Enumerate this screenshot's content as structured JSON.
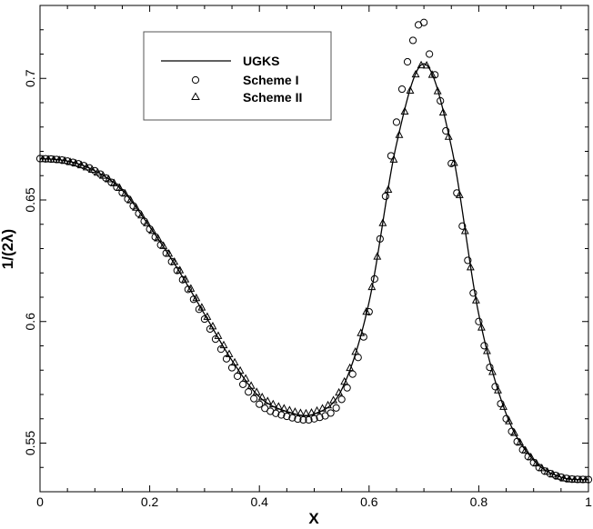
{
  "chart_data": {
    "type": "line",
    "xlabel": "X",
    "ylabel": "1/(2λ)",
    "xlim": [
      0,
      1
    ],
    "ylim": [
      0.53,
      0.73
    ],
    "x_ticks": [
      0,
      0.2,
      0.4,
      0.6,
      0.8,
      1
    ],
    "x_tick_labels": [
      "0",
      "0.2",
      "0.4",
      "0.6",
      "0.8",
      "1"
    ],
    "y_ticks": [
      0.55,
      0.6,
      0.65,
      0.7
    ],
    "y_tick_labels": [
      "0.55",
      "0.6",
      "0.65",
      "0.7"
    ],
    "grid": false,
    "legend_position": "top-left",
    "series": [
      {
        "name": "UGKS",
        "style": "line",
        "x": [
          0,
          0.05,
          0.1,
          0.15,
          0.2,
          0.25,
          0.3,
          0.35,
          0.4,
          0.45,
          0.5,
          0.55,
          0.6,
          0.65,
          0.7,
          0.75,
          0.8,
          0.85,
          0.9,
          0.95,
          1
        ],
        "y": [
          0.667,
          0.666,
          0.662,
          0.654,
          0.639,
          0.622,
          0.603,
          0.584,
          0.569,
          0.563,
          0.562,
          0.572,
          0.608,
          0.673,
          0.706,
          0.672,
          0.603,
          0.562,
          0.543,
          0.536,
          0.535
        ]
      },
      {
        "name": "Scheme I",
        "style": "circle",
        "x": [
          0,
          0.05,
          0.1,
          0.15,
          0.2,
          0.25,
          0.3,
          0.35,
          0.4,
          0.45,
          0.5,
          0.55,
          0.6,
          0.65,
          0.69,
          0.7,
          0.71,
          0.75,
          0.8,
          0.85,
          0.9,
          0.95,
          1
        ],
        "y": [
          0.667,
          0.666,
          0.662,
          0.653,
          0.638,
          0.621,
          0.601,
          0.581,
          0.566,
          0.561,
          0.56,
          0.568,
          0.604,
          0.682,
          0.722,
          0.723,
          0.71,
          0.665,
          0.6,
          0.56,
          0.542,
          0.536,
          0.535
        ]
      },
      {
        "name": "Scheme II",
        "style": "triangle",
        "x": [
          0,
          0.05,
          0.1,
          0.15,
          0.2,
          0.25,
          0.3,
          0.35,
          0.4,
          0.45,
          0.5,
          0.55,
          0.6,
          0.65,
          0.7,
          0.75,
          0.8,
          0.85,
          0.9,
          0.95,
          1
        ],
        "y": [
          0.667,
          0.666,
          0.662,
          0.654,
          0.639,
          0.623,
          0.604,
          0.585,
          0.57,
          0.564,
          0.563,
          0.573,
          0.609,
          0.672,
          0.706,
          0.671,
          0.603,
          0.562,
          0.543,
          0.536,
          0.535
        ]
      }
    ]
  }
}
